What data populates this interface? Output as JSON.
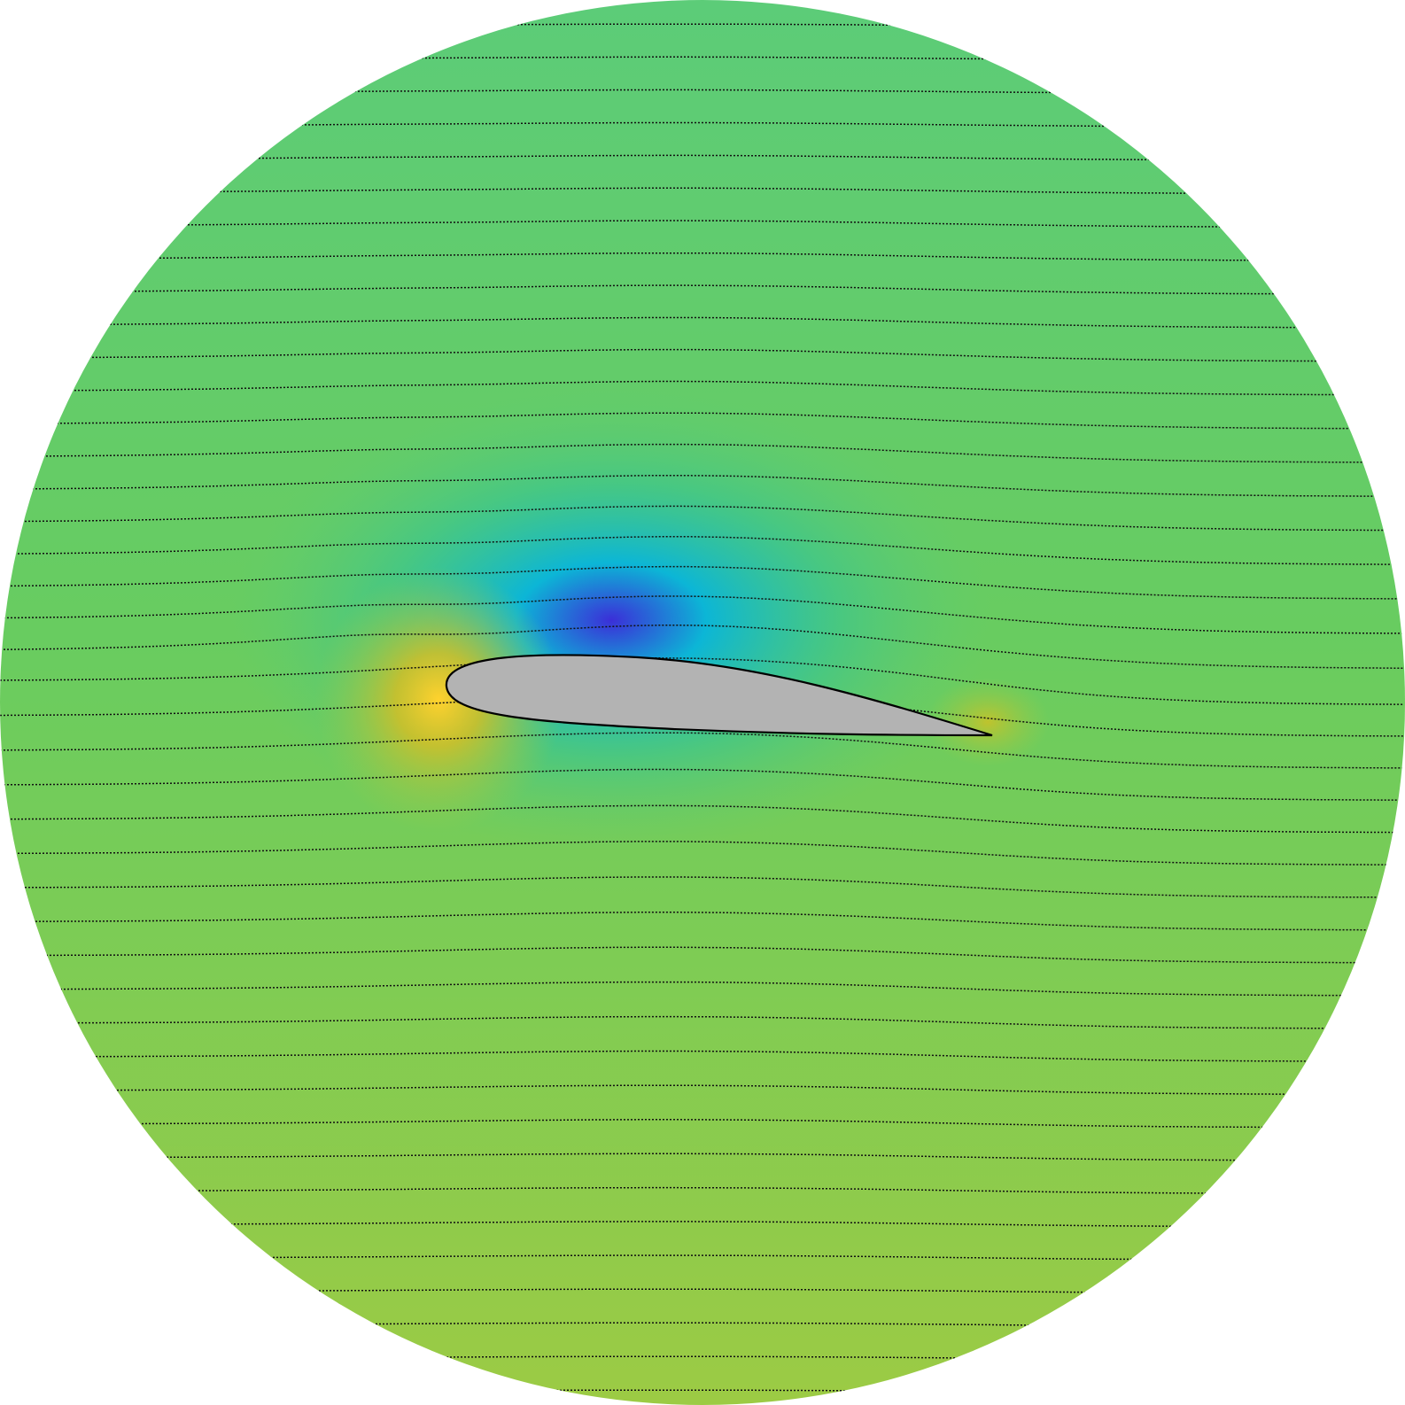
{
  "diagram": {
    "kind": "potential-flow-streamlines-around-airfoil",
    "field": "pressure",
    "colors": {
      "freestream_top": "#5ccc78",
      "freestream_bottom": "#9ccb44",
      "suction_peak": "#3b2fd8",
      "suction_mid": "#0cb6d6",
      "stagnation": "#ffd22e",
      "stagnation_halo": "#d6bf24",
      "trailing_edge": "#c8c228",
      "airfoil_fill": "#b3b3b3",
      "airfoil_edge": "#000000",
      "streamline": "#111111"
    },
    "streamline_count": 42,
    "streamline_style": "dotted"
  }
}
